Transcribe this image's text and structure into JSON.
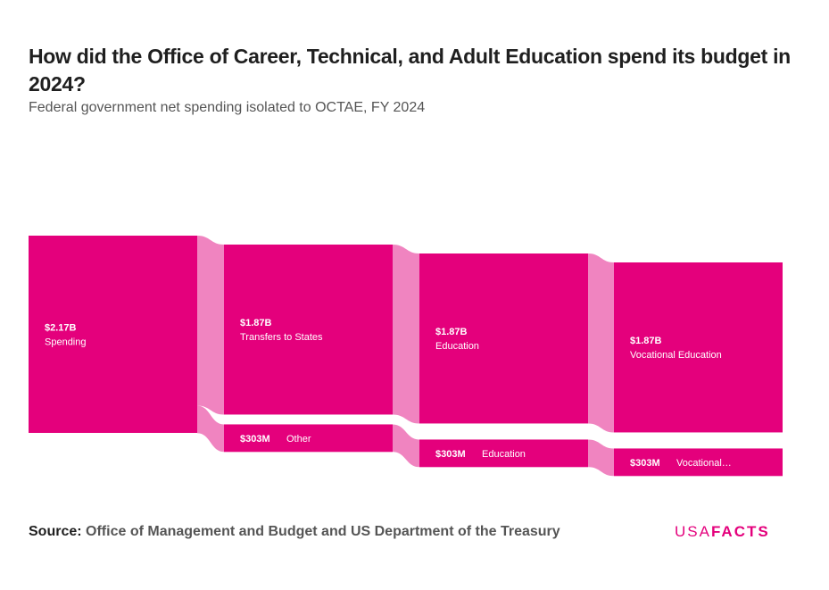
{
  "header": {
    "title": "How did the Office of Career, Technical, and Adult Education spend its budget in 2024?",
    "subtitle": "Federal government net spending isolated to OCTAE, FY 2024"
  },
  "footer": {
    "source_label": "Source:",
    "source_text": "Office of Management and Budget and US Department of the Treasury",
    "logo_usa": "USA",
    "logo_facts": "FACTS"
  },
  "colors": {
    "node": "#e4007c",
    "link": "#f084c0",
    "label": "#ffffff"
  },
  "chart_data": {
    "type": "sankey",
    "title": "How did the Office of Career, Technical, and Adult Education spend its budget in 2024?",
    "subtitle": "Federal government net spending isolated to OCTAE, FY 2024",
    "units": "USD",
    "levels": [
      [
        {
          "id": "spending",
          "label": "Spending",
          "value_label": "$2.17B",
          "value": 2.17
        }
      ],
      [
        {
          "id": "transfers",
          "label": "Transfers to States",
          "value_label": "$1.87B",
          "value": 1.87
        },
        {
          "id": "other",
          "label": "Other",
          "value_label": "$303M",
          "value": 0.303
        }
      ],
      [
        {
          "id": "education1",
          "label": "Education",
          "value_label": "$1.87B",
          "value": 1.87
        },
        {
          "id": "education2",
          "label": "Education",
          "value_label": "$303M",
          "value": 0.303
        }
      ],
      [
        {
          "id": "vocational1",
          "label": "Vocational Education",
          "value_label": "$1.87B",
          "value": 1.87
        },
        {
          "id": "vocational2",
          "label": "Vocational…",
          "value_label": "$303M",
          "value": 0.303
        }
      ]
    ],
    "links": [
      {
        "source": "spending",
        "target": "transfers",
        "value": 1.87
      },
      {
        "source": "spending",
        "target": "other",
        "value": 0.303
      },
      {
        "source": "transfers",
        "target": "education1",
        "value": 1.87
      },
      {
        "source": "other",
        "target": "education2",
        "value": 0.303
      },
      {
        "source": "education1",
        "target": "vocational1",
        "value": 1.87
      },
      {
        "source": "education2",
        "target": "vocational2",
        "value": 0.303
      }
    ]
  }
}
